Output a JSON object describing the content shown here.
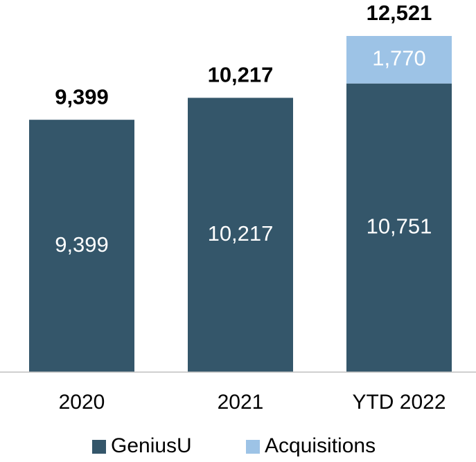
{
  "chart_data": {
    "type": "stacked_bar",
    "categories": [
      "2020",
      "2021",
      "YTD 2022"
    ],
    "series": [
      {
        "name": "GeniusU",
        "color": "#34566a",
        "values": [
          9399,
          10217,
          10751
        ],
        "value_labels": [
          "9,399",
          "10,217",
          "10,751"
        ]
      },
      {
        "name": "Acquisitions",
        "color": "#9dc3e6",
        "values": [
          null,
          null,
          1770
        ],
        "value_labels": [
          null,
          null,
          "1,770"
        ]
      }
    ],
    "totals": [
      9399,
      10217,
      12521
    ],
    "total_labels": [
      "9,399",
      "10,217",
      "12,521"
    ],
    "legend": "bottom"
  }
}
